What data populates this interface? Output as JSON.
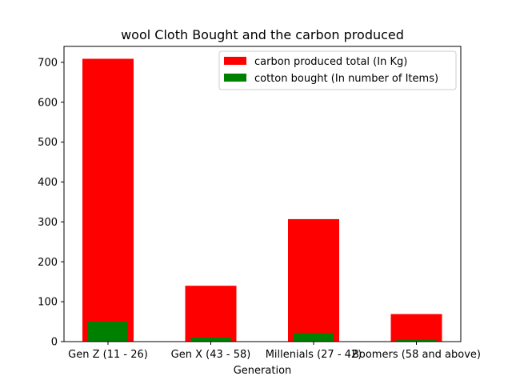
{
  "chart_data": {
    "type": "bar",
    "title": "wool Cloth Bought and the carbon produced",
    "xlabel": "Generation",
    "ylabel": "",
    "categories": [
      "Gen Z (11 - 26)",
      "Gen X (43 - 58)",
      "Millenials (27 - 42)",
      "Boomers (58 and above)"
    ],
    "ylim": [
      0,
      740
    ],
    "yticks": [
      0,
      100,
      200,
      300,
      400,
      500,
      600,
      700
    ],
    "series": [
      {
        "name": "carbon produced total (In Kg)",
        "values": [
          709,
          140,
          307,
          69
        ],
        "color": "#ff0000"
      },
      {
        "name": "cotton bought (In number of Items)",
        "values": [
          50,
          10,
          22,
          4
        ],
        "color": "#008000"
      }
    ],
    "legend": "upper right",
    "grid": false
  }
}
